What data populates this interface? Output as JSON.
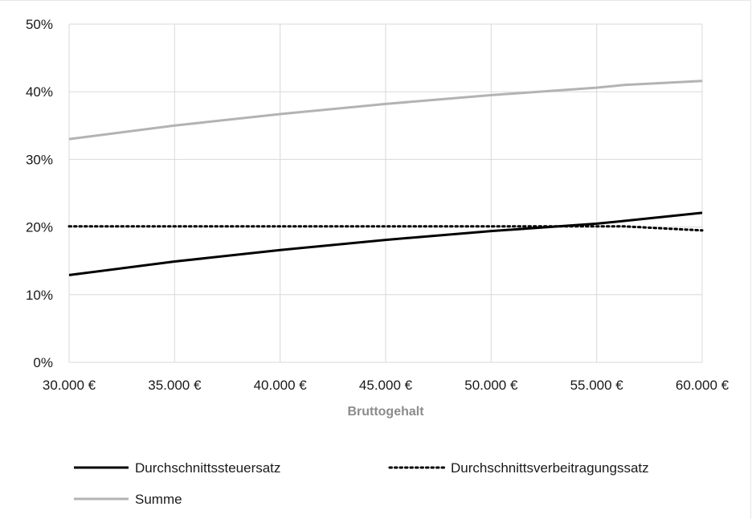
{
  "chart_data": {
    "type": "line",
    "title": "",
    "xlabel": "Bruttogehalt",
    "ylabel": "",
    "x": [
      30000,
      35000,
      40000,
      45000,
      50000,
      55000,
      56300,
      60000
    ],
    "xlim": [
      30000,
      60000
    ],
    "ylim": [
      0,
      0.5
    ],
    "x_ticks": [
      "30.000 €",
      "35.000 €",
      "40.000 €",
      "45.000 €",
      "50.000 €",
      "55.000 €",
      "60.000 €"
    ],
    "y_ticks": [
      "0%",
      "10%",
      "20%",
      "30%",
      "40%",
      "50%"
    ],
    "grid": true,
    "legend_position": "bottom",
    "series": [
      {
        "name": "Durchschnittssteuersatz",
        "color": "#000000",
        "style": "solid",
        "values": [
          0.129,
          0.149,
          0.166,
          0.181,
          0.194,
          0.205,
          0.209,
          0.221
        ]
      },
      {
        "name": "Durchschnittsverbeitragungssatz",
        "color": "#000000",
        "style": "dotted",
        "values": [
          0.201,
          0.201,
          0.201,
          0.201,
          0.201,
          0.201,
          0.201,
          0.195
        ]
      },
      {
        "name": "Summe",
        "color": "#b3b3b3",
        "style": "solid",
        "values": [
          0.33,
          0.35,
          0.367,
          0.382,
          0.395,
          0.406,
          0.41,
          0.416
        ]
      }
    ]
  }
}
